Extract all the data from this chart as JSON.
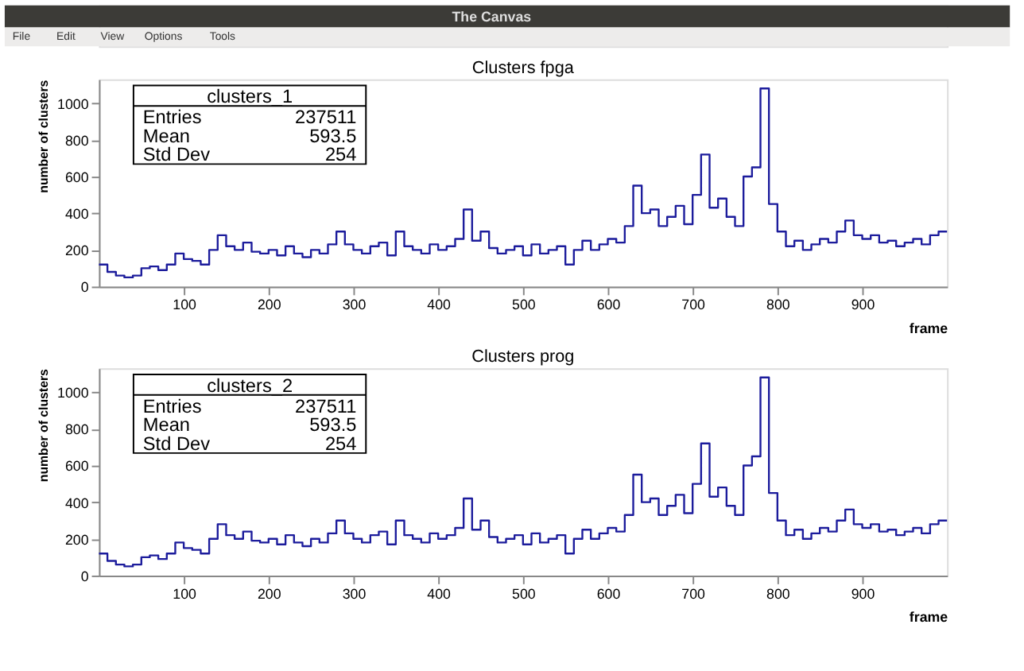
{
  "chart_data": [
    {
      "type": "histogram",
      "title": "Clusters fpga",
      "xlabel": "frame",
      "ylabel": "number of clusters",
      "bins": [
        0,
        10,
        20,
        30,
        40,
        50,
        60,
        70,
        80,
        90,
        100,
        110,
        120,
        130,
        140,
        150,
        160,
        170,
        180,
        190,
        200,
        210,
        220,
        230,
        240,
        250,
        260,
        270,
        280,
        290,
        300,
        310,
        320,
        330,
        340,
        350,
        360,
        370,
        380,
        390,
        400,
        410,
        420,
        430,
        440,
        450,
        460,
        470,
        480,
        490,
        500,
        510,
        520,
        530,
        540,
        550,
        560,
        570,
        580,
        590,
        600,
        610,
        620,
        630,
        640,
        650,
        660,
        670,
        680,
        690,
        700,
        710,
        720,
        730,
        740,
        750,
        760,
        770,
        780,
        790,
        800,
        810,
        820,
        830,
        840,
        850,
        860,
        870,
        880,
        890,
        900,
        910,
        920,
        930,
        940,
        950,
        960,
        970,
        980,
        990,
        1000
      ],
      "values": [
        120,
        80,
        60,
        50,
        60,
        100,
        110,
        90,
        120,
        180,
        150,
        140,
        120,
        200,
        280,
        220,
        200,
        240,
        190,
        180,
        200,
        170,
        220,
        180,
        160,
        200,
        180,
        230,
        300,
        230,
        200,
        180,
        220,
        240,
        170,
        300,
        220,
        200,
        180,
        230,
        200,
        220,
        260,
        420,
        250,
        300,
        210,
        180,
        200,
        220,
        170,
        230,
        180,
        200,
        220,
        120,
        200,
        250,
        200,
        230,
        260,
        240,
        330,
        550,
        400,
        420,
        330,
        380,
        440,
        340,
        500,
        720,
        430,
        480,
        380,
        330,
        600,
        650,
        1080,
        450,
        300,
        220,
        250,
        200,
        230,
        260,
        240,
        300,
        360,
        280,
        260,
        280,
        240,
        250,
        220,
        240,
        260,
        230,
        280,
        300
      ],
      "color": "#1c1c9c",
      "xlim": [
        0,
        1000
      ],
      "ylim": [
        0,
        1130
      ],
      "xticks": [
        100,
        200,
        300,
        400,
        500,
        600,
        700,
        800,
        900
      ],
      "yticks": [
        0,
        200,
        400,
        600,
        800,
        1000
      ],
      "annotations": [
        "The Canvas",
        "File",
        "Edit",
        "View",
        "Options",
        "Tools",
        "clusters_1",
        "Entries",
        "237511",
        "Mean",
        "593.5",
        "Std Dev",
        "254"
      ]
    },
    {
      "type": "histogram",
      "title": "Clusters prog",
      "xlabel": "frame",
      "ylabel": "number of clusters",
      "bins": [
        0,
        10,
        20,
        30,
        40,
        50,
        60,
        70,
        80,
        90,
        100,
        110,
        120,
        130,
        140,
        150,
        160,
        170,
        180,
        190,
        200,
        210,
        220,
        230,
        240,
        250,
        260,
        270,
        280,
        290,
        300,
        310,
        320,
        330,
        340,
        350,
        360,
        370,
        380,
        390,
        400,
        410,
        420,
        430,
        440,
        450,
        460,
        470,
        480,
        490,
        500,
        510,
        520,
        530,
        540,
        550,
        560,
        570,
        580,
        590,
        600,
        610,
        620,
        630,
        640,
        650,
        660,
        670,
        680,
        690,
        700,
        710,
        720,
        730,
        740,
        750,
        760,
        770,
        780,
        790,
        800,
        810,
        820,
        830,
        840,
        850,
        860,
        870,
        880,
        890,
        900,
        910,
        920,
        930,
        940,
        950,
        960,
        970,
        980,
        990,
        1000
      ],
      "values": [
        120,
        80,
        60,
        50,
        60,
        100,
        110,
        90,
        120,
        180,
        150,
        140,
        120,
        200,
        280,
        220,
        200,
        240,
        190,
        180,
        200,
        170,
        220,
        180,
        160,
        200,
        180,
        230,
        300,
        230,
        200,
        180,
        220,
        240,
        170,
        300,
        220,
        200,
        180,
        230,
        200,
        220,
        260,
        420,
        250,
        300,
        210,
        180,
        200,
        220,
        170,
        230,
        180,
        200,
        220,
        120,
        200,
        250,
        200,
        230,
        260,
        240,
        330,
        550,
        400,
        420,
        330,
        380,
        440,
        340,
        500,
        720,
        430,
        480,
        380,
        330,
        600,
        650,
        1080,
        450,
        300,
        220,
        250,
        200,
        230,
        260,
        240,
        300,
        360,
        280,
        260,
        280,
        240,
        250,
        220,
        240,
        260,
        230,
        280,
        300
      ],
      "color": "#1c1c9c",
      "xlim": [
        0,
        1000
      ],
      "ylim": [
        0,
        1130
      ],
      "xticks": [
        100,
        200,
        300,
        400,
        500,
        600,
        700,
        800,
        900
      ],
      "yticks": [
        0,
        200,
        400,
        600,
        800,
        1000
      ],
      "annotations": [
        "clusters_2",
        "Entries",
        "237511",
        "Mean",
        "593.5",
        "Std Dev",
        "254"
      ]
    }
  ]
}
